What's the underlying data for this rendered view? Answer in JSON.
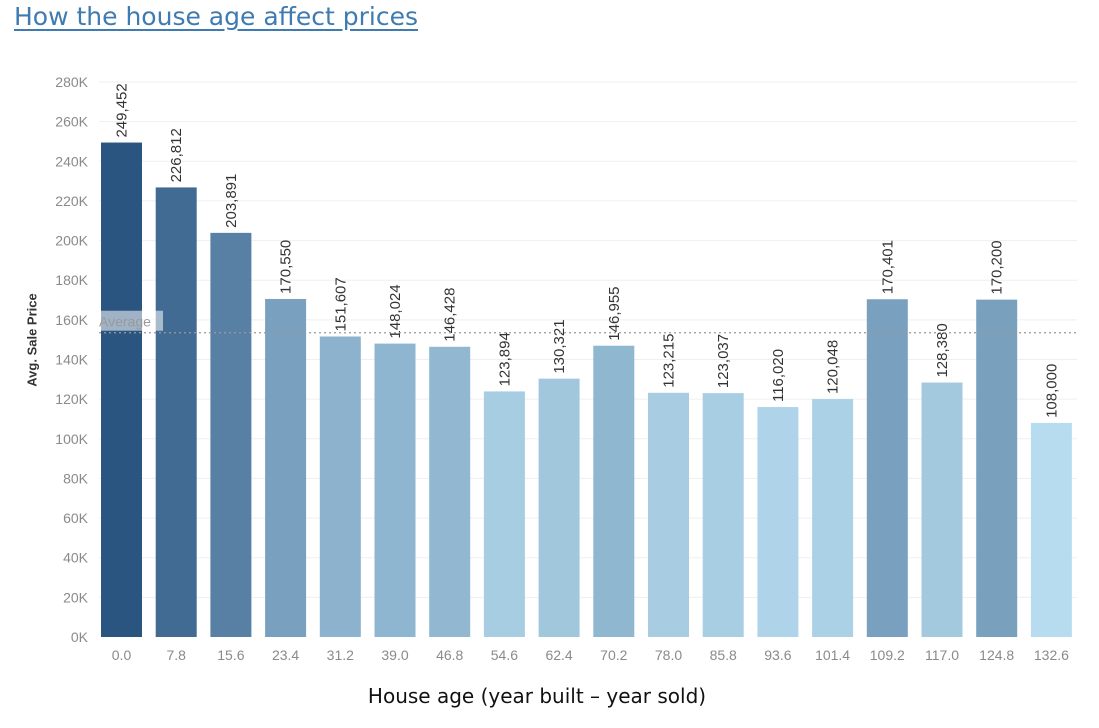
{
  "chart_data": {
    "type": "bar",
    "title": "How the house age affect prices",
    "xlabel": "House age (year built – year sold)",
    "ylabel": "Avg. Sale Price",
    "categories": [
      "0.0",
      "7.8",
      "15.6",
      "23.4",
      "31.2",
      "39.0",
      "46.8",
      "54.6",
      "62.4",
      "70.2",
      "78.0",
      "85.8",
      "93.6",
      "101.4",
      "109.2",
      "117.0",
      "124.8",
      "132.6"
    ],
    "values": [
      249452,
      226812,
      203891,
      170550,
      151607,
      148024,
      146428,
      123894,
      130321,
      146955,
      123215,
      123037,
      116020,
      120048,
      170401,
      128380,
      170200,
      108000
    ],
    "value_labels": [
      "249,452",
      "226,812",
      "203,891",
      "170,550",
      "151,607",
      "148,024",
      "146,428",
      "123,894",
      "130,321",
      "146,955",
      "123,215",
      "123,037",
      "116,020",
      "120,048",
      "170,401",
      "128,380",
      "170,200",
      "108,000"
    ],
    "ylim": [
      0,
      280000
    ],
    "yticks": [
      0,
      20000,
      40000,
      60000,
      80000,
      100000,
      120000,
      140000,
      160000,
      180000,
      200000,
      220000,
      240000,
      260000,
      280000
    ],
    "ytick_labels": [
      "0K",
      "20K",
      "40K",
      "60K",
      "80K",
      "100K",
      "120K",
      "140K",
      "160K",
      "180K",
      "200K",
      "220K",
      "240K",
      "260K",
      "280K"
    ],
    "reference_line": {
      "label": "Average",
      "value": 153500
    },
    "color_scale": {
      "low": "#b7dcef",
      "high": "#2a5580"
    },
    "grid": true,
    "legend": "none"
  }
}
